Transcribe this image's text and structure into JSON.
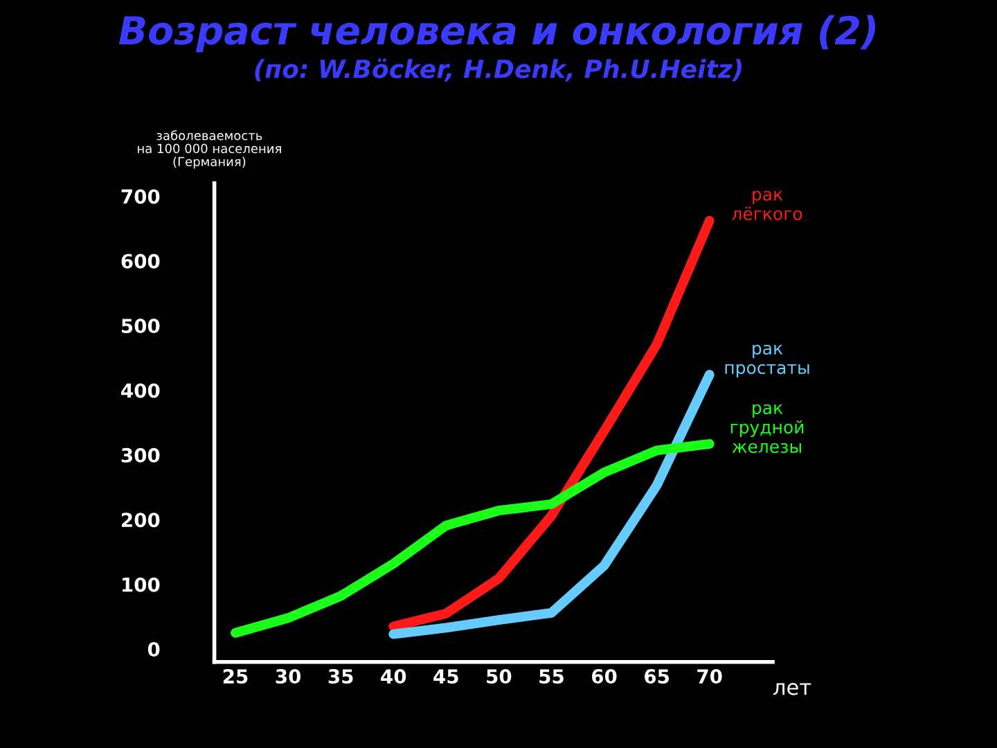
{
  "chart_data": {
    "type": "line",
    "title": "Возраст человека и онкология (2)",
    "subtitle": "(по: W.Böcker, H.Denk, Ph.U.Heitz)",
    "ylabel": "заболеваемость\nна 100 000 населения\n(Германия)",
    "xlabel": "лет",
    "x": [
      25,
      30,
      35,
      40,
      45,
      50,
      55,
      60,
      65,
      70
    ],
    "series": [
      {
        "name": "рак\nлёгкого",
        "color": "#ff1a1a",
        "values": [
          null,
          null,
          null,
          35,
          55,
          109,
          206,
          337,
          471,
          662
        ]
      },
      {
        "name": "рак\nпростаты",
        "color": "#66ccff",
        "values": [
          null,
          null,
          null,
          23,
          33,
          45,
          56,
          129,
          253,
          424
        ]
      },
      {
        "name": "рак\nгрудной\nжелезы",
        "color": "#1aff1a",
        "values": [
          25,
          48,
          82,
          132,
          191,
          214,
          224,
          273,
          307,
          317
        ]
      }
    ],
    "xlim": [
      23,
      76
    ],
    "xticks": [
      25,
      30,
      35,
      40,
      45,
      50,
      55,
      60,
      65,
      70
    ],
    "ylim": [
      -20,
      720
    ],
    "yticks": [
      0,
      100,
      200,
      300,
      400,
      500,
      600,
      700
    ],
    "grid": false,
    "legend": false,
    "marker": "none",
    "line_style": "solid"
  }
}
